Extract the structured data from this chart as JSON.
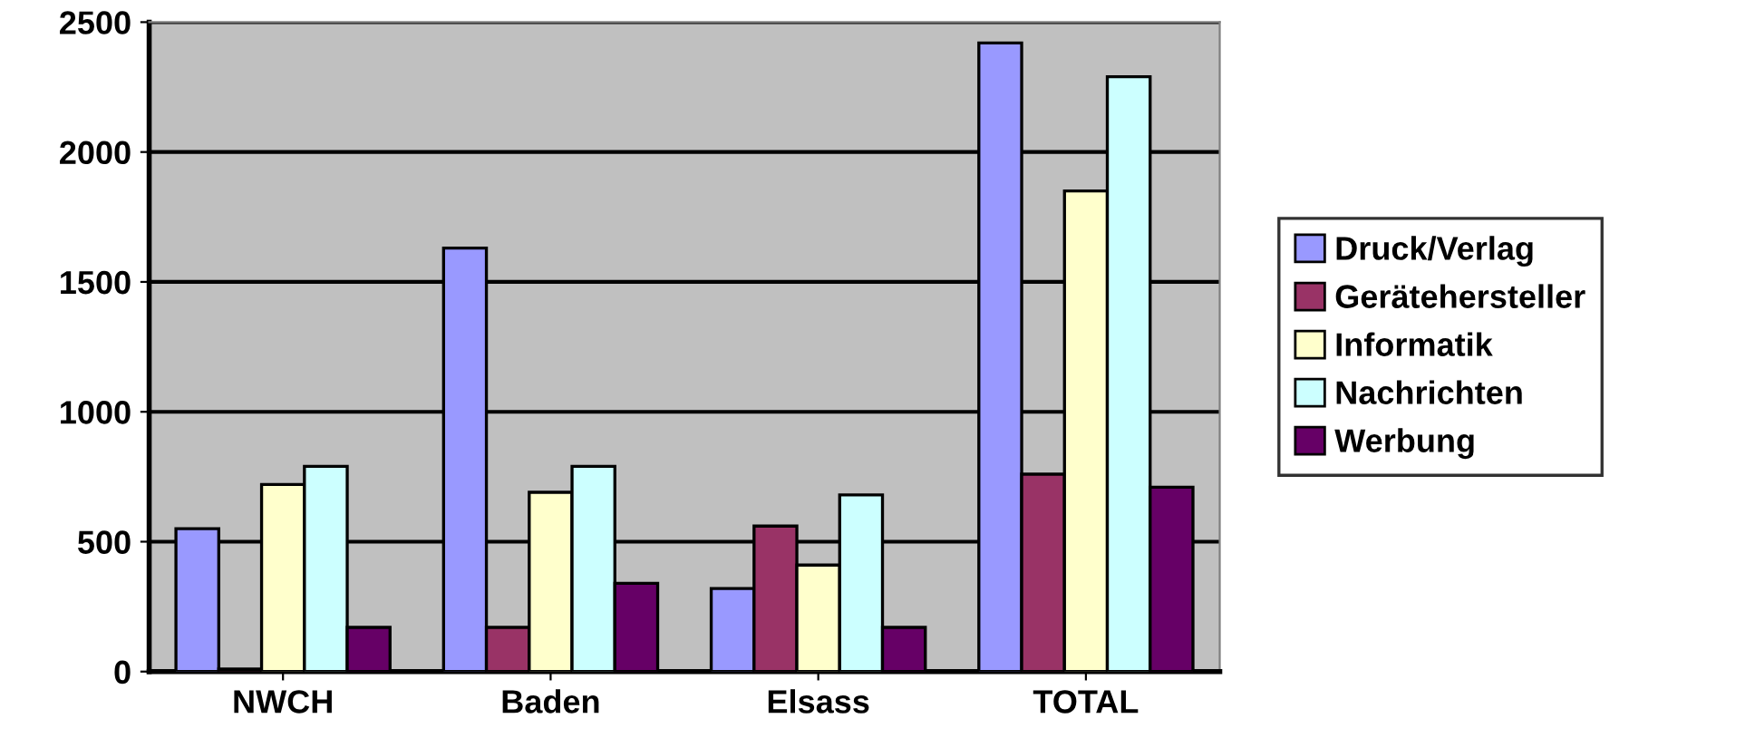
{
  "chart_data": {
    "type": "bar",
    "categories": [
      "NWCH",
      "Baden",
      "Elsass",
      "TOTAL"
    ],
    "series": [
      {
        "name": "Druck/Verlag",
        "color": "#9999ff",
        "values": [
          550,
          1630,
          320,
          2420
        ]
      },
      {
        "name": "Gerätehersteller",
        "color": "#993366",
        "values": [
          10,
          170,
          560,
          760
        ]
      },
      {
        "name": "Informatik",
        "color": "#ffffcc",
        "values": [
          720,
          690,
          410,
          1850
        ]
      },
      {
        "name": "Nachrichten",
        "color": "#ccffff",
        "values": [
          790,
          790,
          680,
          2290
        ]
      },
      {
        "name": "Werbung",
        "color": "#660066",
        "values": [
          170,
          340,
          170,
          710
        ]
      }
    ],
    "ylim": [
      0,
      2500
    ],
    "yticks": [
      0,
      500,
      1000,
      1500,
      2000,
      2500
    ],
    "grid": "y",
    "legend": "right"
  }
}
